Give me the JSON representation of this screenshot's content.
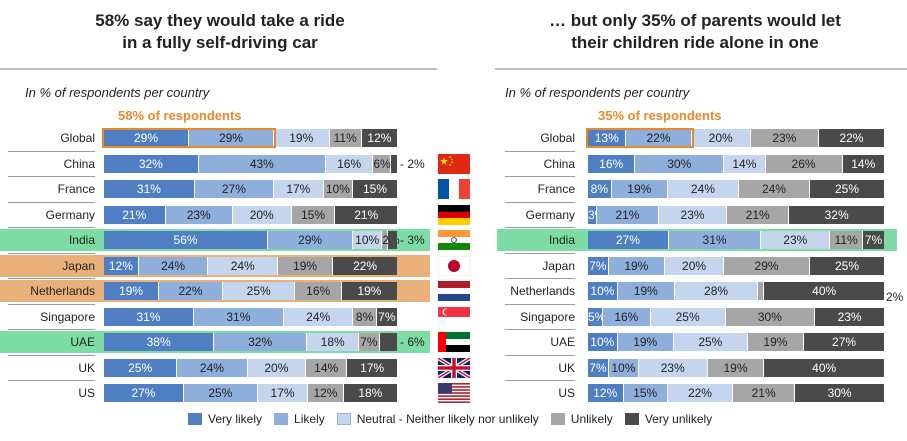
{
  "panels": [
    {
      "title_line1": "58% say they would take a ride",
      "title_line2": "in a fully self-driving car",
      "subtitle": "In % of respondents per country",
      "annotation": "58% of respondents"
    },
    {
      "title_line1": "… but only 35% of parents would let",
      "title_line2": "their children ride alone in one",
      "subtitle": "In % of respondents per country",
      "annotation": "35% of respondents"
    }
  ],
  "legend": [
    "Very likely",
    "Likely",
    "Neutral - Neither likely nor unlikely",
    "Unlikely",
    "Very unlikely"
  ],
  "colors": {
    "very_likely": "#4F7FC2",
    "likely": "#8EAEDC",
    "neutral": "#C5D5EE",
    "unlikely": "#A6A6A6",
    "very_unlikely": "#4A4A4A",
    "highlight_green": "#7DDCA3",
    "highlight_orange": "#E9B07A",
    "annotation_orange": "#E8892C"
  },
  "chart_data": [
    {
      "type": "bar",
      "stacked": true,
      "orientation": "horizontal",
      "title": "58% say they would take a ride in a fully self-driving car",
      "subtitle": "In % of respondents per country",
      "categories": [
        "Global",
        "China",
        "France",
        "Germany",
        "India",
        "Japan",
        "Netherlands",
        "Singapore",
        "UAE",
        "UK",
        "US"
      ],
      "series": [
        {
          "name": "Very likely",
          "values": [
            29,
            32,
            31,
            21,
            56,
            12,
            19,
            31,
            38,
            25,
            27
          ]
        },
        {
          "name": "Likely",
          "values": [
            29,
            43,
            27,
            23,
            29,
            24,
            22,
            31,
            32,
            24,
            25
          ]
        },
        {
          "name": "Neutral - Neither likely nor unlikely",
          "values": [
            19,
            16,
            17,
            20,
            10,
            24,
            25,
            24,
            18,
            20,
            17
          ]
        },
        {
          "name": "Unlikely",
          "values": [
            11,
            6,
            10,
            15,
            2,
            19,
            16,
            8,
            7,
            14,
            12
          ]
        },
        {
          "name": "Very unlikely",
          "values": [
            12,
            2,
            15,
            21,
            3,
            22,
            19,
            7,
            6,
            17,
            18
          ]
        }
      ],
      "annotation": "58% of respondents",
      "highlight_green": [
        "India",
        "UAE"
      ],
      "highlight_orange": [
        "Japan",
        "Netherlands"
      ]
    },
    {
      "type": "bar",
      "stacked": true,
      "orientation": "horizontal",
      "title": "… but only 35% of parents would let their children ride alone in one",
      "subtitle": "In % of respondents per country",
      "categories": [
        "Global",
        "China",
        "France",
        "Germany",
        "India",
        "Japan",
        "Netherlands",
        "Singapore",
        "UAE",
        "UK",
        "US"
      ],
      "series": [
        {
          "name": "Very likely",
          "values": [
            13,
            16,
            8,
            3,
            27,
            7,
            10,
            5,
            10,
            7,
            12
          ]
        },
        {
          "name": "Likely",
          "values": [
            22,
            30,
            19,
            21,
            31,
            19,
            19,
            16,
            19,
            10,
            15
          ]
        },
        {
          "name": "Neutral - Neither likely nor unlikely",
          "values": [
            20,
            14,
            24,
            23,
            23,
            20,
            28,
            25,
            25,
            23,
            22
          ]
        },
        {
          "name": "Unlikely",
          "values": [
            23,
            26,
            24,
            21,
            11,
            29,
            2,
            30,
            19,
            19,
            21
          ]
        },
        {
          "name": "Very unlikely",
          "values": [
            22,
            14,
            25,
            32,
            7,
            25,
            40,
            23,
            27,
            40,
            30
          ]
        }
      ],
      "annotation": "35% of respondents",
      "highlight_green": [
        "India"
      ],
      "highlight_orange": []
    }
  ],
  "outside_labels_left": {
    "China": "2%",
    "India": "3%",
    "UAE": "6%"
  },
  "outside_labels_right": {
    "Netherlands": "2%"
  },
  "flags": [
    "china-flag-icon",
    "france-flag-icon",
    "germany-flag-icon",
    "india-flag-icon",
    "japan-flag-icon",
    "netherlands-flag-icon",
    "singapore-flag-icon",
    "uae-flag-icon",
    "uk-flag-icon",
    "us-flag-icon"
  ]
}
